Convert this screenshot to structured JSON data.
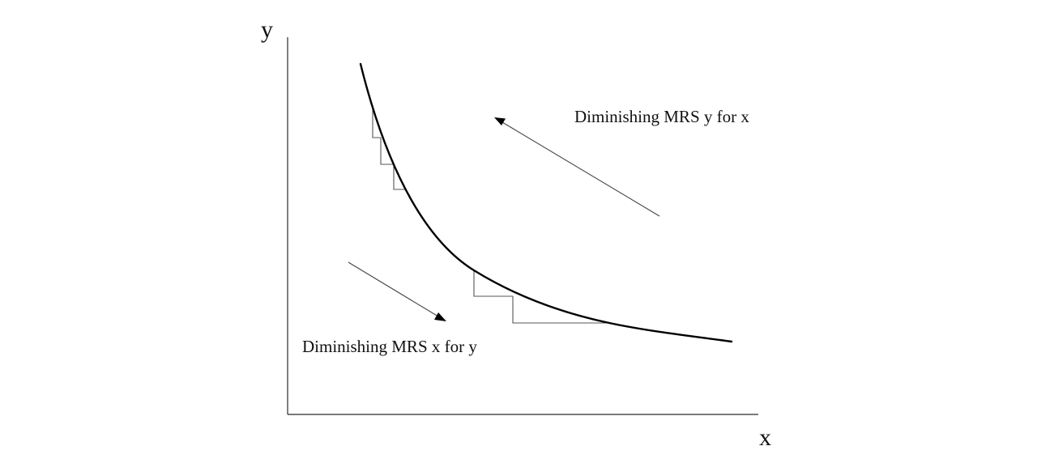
{
  "axes": {
    "y_label": "y",
    "x_label": "x"
  },
  "annotations": {
    "upper": "Diminishing MRS y for x",
    "lower": "Diminishing MRS x for y"
  },
  "colors": {
    "curve": "#000000",
    "axes": "#2b2b2b",
    "steps": "#555555",
    "arrows": "#444444"
  }
}
